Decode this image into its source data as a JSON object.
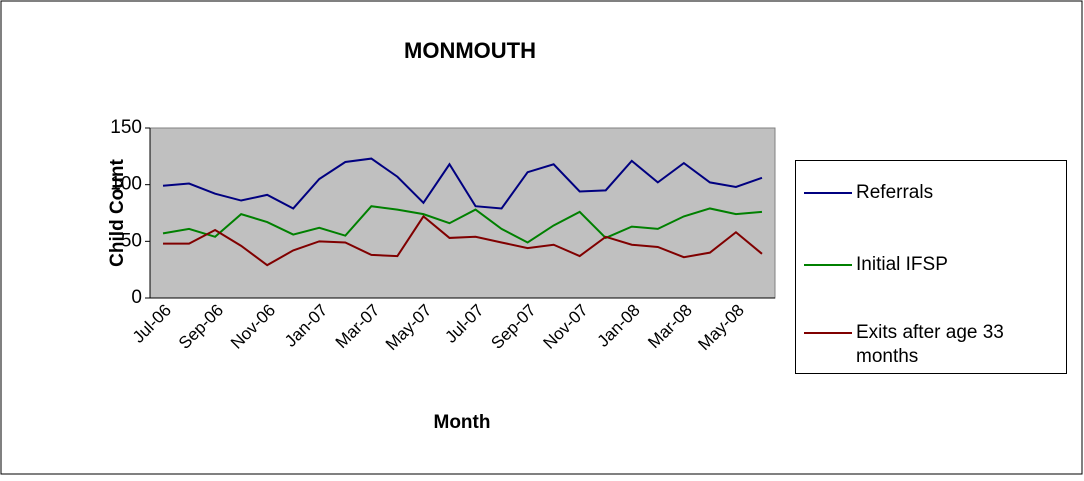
{
  "chart_data": {
    "type": "line",
    "title": "MONMOUTH",
    "x_label": "Month",
    "y_label": "Child Count",
    "categories": [
      "Jul-06",
      null,
      "Sep-06",
      null,
      "Nov-06",
      null,
      "Jan-07",
      null,
      "Mar-07",
      null,
      "May-07",
      null,
      "Jul-07",
      null,
      "Sep-07",
      null,
      "Nov-07",
      null,
      "Jan-08",
      null,
      "Mar-08",
      null,
      "May-08",
      null
    ],
    "series": [
      {
        "name": "Referrals",
        "color": "#000080",
        "values": [
          99,
          101,
          92,
          86,
          91,
          79,
          105,
          120,
          123,
          107,
          84,
          118,
          81,
          79,
          111,
          118,
          94,
          95,
          121,
          102,
          119,
          102,
          98,
          106
        ]
      },
      {
        "name": "Initial IFSP",
        "color": "#008000",
        "values": [
          57,
          61,
          54,
          74,
          67,
          56,
          62,
          55,
          81,
          78,
          74,
          66,
          78,
          61,
          49,
          64,
          76,
          53,
          63,
          61,
          72,
          79,
          74,
          76
        ]
      },
      {
        "name": "Exits after age 33 months",
        "color": "#800000",
        "values": [
          48,
          48,
          60,
          46,
          29,
          42,
          50,
          49,
          38,
          37,
          72,
          53,
          54,
          49,
          44,
          47,
          37,
          54,
          47,
          45,
          36,
          40,
          58,
          39
        ]
      }
    ],
    "ylim": [
      0,
      150
    ],
    "yticks": [
      0,
      50,
      100,
      150
    ],
    "grid": false,
    "legend": "right"
  }
}
